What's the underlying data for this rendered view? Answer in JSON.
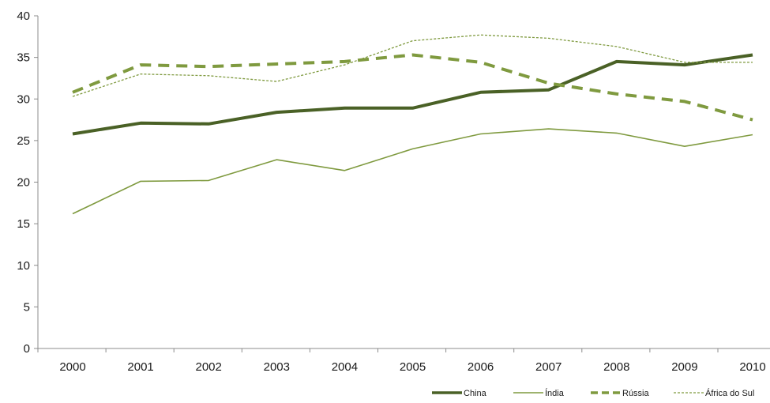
{
  "chart_data": {
    "type": "line",
    "title": "",
    "xlabel": "",
    "ylabel": "",
    "x": [
      "2000",
      "2001",
      "2002",
      "2003",
      "2004",
      "2005",
      "2006",
      "2007",
      "2008",
      "2009",
      "2010"
    ],
    "ylim": [
      0,
      40
    ],
    "yticks": [
      0,
      5,
      10,
      15,
      20,
      25,
      30,
      35,
      40
    ],
    "grid": false,
    "legend_position": "bottom-right",
    "series": [
      {
        "name": "China",
        "values": [
          25.8,
          27.1,
          27.0,
          28.4,
          28.9,
          28.9,
          30.8,
          31.1,
          34.5,
          34.1,
          35.3
        ],
        "color": "#4a6126",
        "style": "thick-solid"
      },
      {
        "name": "Índia",
        "values": [
          16.2,
          20.1,
          20.2,
          22.7,
          21.4,
          24.0,
          25.8,
          26.4,
          25.9,
          24.3,
          25.7
        ],
        "color": "#7f9a3f",
        "style": "thin-solid"
      },
      {
        "name": "Rússia",
        "values": [
          30.8,
          34.1,
          33.9,
          34.2,
          34.5,
          35.3,
          34.4,
          31.9,
          30.6,
          29.7,
          27.5
        ],
        "color": "#7f9a3f",
        "style": "thick-dashed"
      },
      {
        "name": "África do Sul",
        "values": [
          30.3,
          33.0,
          32.8,
          32.1,
          34.1,
          37.0,
          37.7,
          37.3,
          36.3,
          34.4,
          34.4
        ],
        "color": "#7f9a3f",
        "style": "thin-dashed"
      }
    ]
  }
}
